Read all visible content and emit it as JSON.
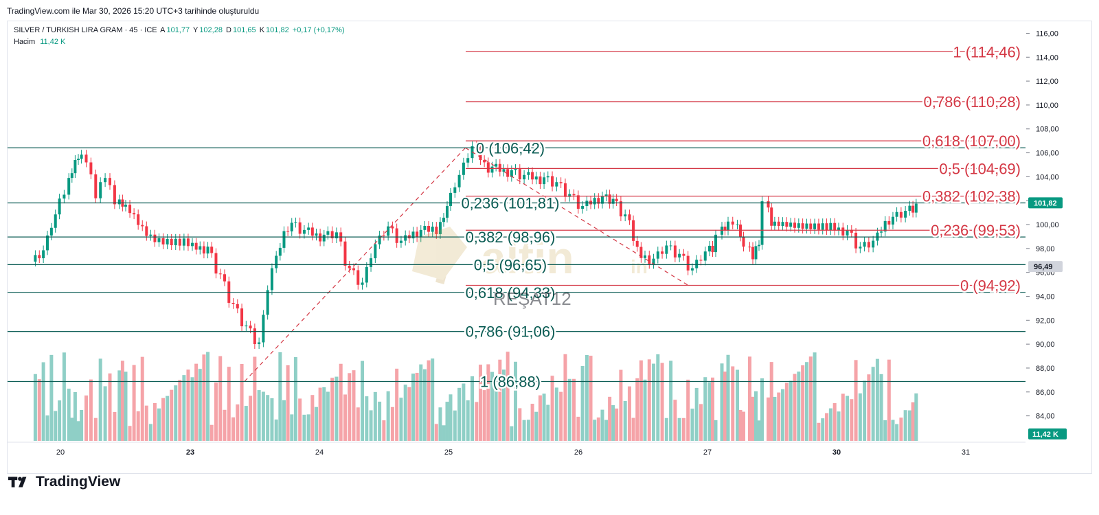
{
  "header": {
    "caption": "TradingView.com ile Mar 30, 2026 15:20 UTC+3 tarihinde oluşturuldu"
  },
  "legend": {
    "symbol": "SILVER / TURKISH LIRA GRAM · 45 · ICE",
    "open_label": "A",
    "open": "101,77",
    "high_label": "Y",
    "high": "102,28",
    "low_label": "D",
    "low": "101,65",
    "close_label": "K",
    "close": "101,82",
    "change": "+0,17 (+0,17%)",
    "volume_label": "Hacim",
    "volume": "11,42 K"
  },
  "brand": {
    "name": "TradingView",
    "watermark": "altin",
    "watermark_suffix": "in",
    "overlay_text": "REŞAT12"
  },
  "colors": {
    "up": "#089981",
    "down": "#f23645",
    "fib_green": "#0b5c54",
    "fib_red": "#d43744",
    "vol_up": "#8fcfc6",
    "vol_down": "#f5a3a8"
  },
  "chart_data": {
    "type": "candlestick",
    "x_ticks": [
      "20",
      "23",
      "24",
      "25",
      "26",
      "27",
      "30",
      "31"
    ],
    "y_ticks": [
      "116,00",
      "114,00",
      "112,00",
      "110,00",
      "108,00",
      "106,00",
      "104,00",
      "102,00",
      "100,00",
      "98,00",
      "96,00",
      "94,00",
      "92,00",
      "90,00",
      "88,00",
      "86,00",
      "84,00"
    ],
    "ylim": [
      82.6,
      116.6
    ],
    "price_badges": [
      {
        "value": 101.82,
        "label": "101,82",
        "kind": "last"
      },
      {
        "value": 96.49,
        "label": "96,49",
        "kind": "gray"
      }
    ],
    "volume_badge": "11,42 K",
    "fib_retracement_green": [
      {
        "ratio": "0",
        "price": 106.42,
        "label": "0 (106,42)"
      },
      {
        "ratio": "0.236",
        "price": 101.81,
        "label": "0,236 (101,81)"
      },
      {
        "ratio": "0.382",
        "price": 98.96,
        "label": "0,382 (98,96)"
      },
      {
        "ratio": "0.5",
        "price": 96.65,
        "label": "0,5 (96,65)"
      },
      {
        "ratio": "0.618",
        "price": 94.33,
        "label": "0,618 (94,33)"
      },
      {
        "ratio": "0.786",
        "price": 91.06,
        "label": "0,786 (91,06)"
      },
      {
        "ratio": "1",
        "price": 86.88,
        "label": "1 (86,88)"
      }
    ],
    "fib_extension_red": [
      {
        "ratio": "1",
        "price": 114.46,
        "label": "1 (114,46)"
      },
      {
        "ratio": "0.786",
        "price": 110.28,
        "label": "0,786 (110,28)"
      },
      {
        "ratio": "0.618",
        "price": 107.0,
        "label": "0,618 (107,00)"
      },
      {
        "ratio": "0.5",
        "price": 104.69,
        "label": "0,5 (104,69)"
      },
      {
        "ratio": "0.382",
        "price": 102.38,
        "label": "0,382 (102,38)"
      },
      {
        "ratio": "0.236",
        "price": 99.53,
        "label": "0,236 (99,53)"
      },
      {
        "ratio": "0",
        "price": 94.92,
        "label": "0 (94,92)"
      }
    ],
    "close_series": [
      [
        19.55,
        97.5
      ],
      [
        19.75,
        100.5
      ],
      [
        19.95,
        102.8
      ],
      [
        20.1,
        104.6
      ],
      [
        20.2,
        105.8
      ],
      [
        20.3,
        105.5
      ],
      [
        20.45,
        102.5
      ],
      [
        20.6,
        104.2
      ],
      [
        20.75,
        102.0
      ],
      [
        20.9,
        101.8
      ],
      [
        21.0,
        98.5
      ],
      [
        23.0,
        97.8
      ],
      [
        23.15,
        95.5
      ],
      [
        23.25,
        93.0
      ],
      [
        23.35,
        91.2
      ],
      [
        23.45,
        89.8
      ],
      [
        23.55,
        96.0
      ],
      [
        23.65,
        99.8
      ],
      [
        23.8,
        99.2
      ],
      [
        23.9,
        98.8
      ],
      [
        24.05,
        99.0
      ],
      [
        24.15,
        96.0
      ],
      [
        24.25,
        94.8
      ],
      [
        24.35,
        98.0
      ],
      [
        24.45,
        99.5
      ],
      [
        24.55,
        98.3
      ],
      [
        24.65,
        99.2
      ],
      [
        24.8,
        99.5
      ],
      [
        24.92,
        101.2
      ],
      [
        25.0,
        103.8
      ],
      [
        25.1,
        106.2
      ],
      [
        25.2,
        104.5
      ],
      [
        25.35,
        104.2
      ],
      [
        25.5,
        103.8
      ],
      [
        25.6,
        103.6
      ],
      [
        25.75,
        103.2
      ],
      [
        25.85,
        102.2
      ],
      [
        25.95,
        101.2
      ],
      [
        26.05,
        102.0
      ],
      [
        26.2,
        101.8
      ],
      [
        26.28,
        100.5
      ],
      [
        26.38,
        97.5
      ],
      [
        26.5,
        96.8
      ],
      [
        26.6,
        97.9
      ],
      [
        26.7,
        97.2
      ],
      [
        26.8,
        96.0
      ],
      [
        26.9,
        97.4
      ],
      [
        27.0,
        98.0
      ],
      [
        27.1,
        98.8
      ],
      [
        27.2,
        99.8
      ],
      [
        27.3,
        100.3
      ],
      [
        27.45,
        99.3
      ],
      [
        27.55,
        97.8
      ],
      [
        27.65,
        97.4
      ],
      [
        27.75,
        98.6
      ],
      [
        27.85,
        101.6
      ],
      [
        27.95,
        100.2
      ],
      [
        28.05,
        99.8
      ],
      [
        30.0,
        99.2
      ],
      [
        30.1,
        97.8
      ],
      [
        30.2,
        98.3
      ],
      [
        30.3,
        100.3
      ],
      [
        30.45,
        100.8
      ],
      [
        30.55,
        101.3
      ],
      [
        30.6,
        101.8
      ]
    ],
    "swing_line_up": [
      [
        23.42,
        86.88
      ],
      [
        25.13,
        106.42
      ]
    ],
    "swing_line_down": [
      [
        25.13,
        106.42
      ],
      [
        26.85,
        94.92
      ]
    ]
  }
}
